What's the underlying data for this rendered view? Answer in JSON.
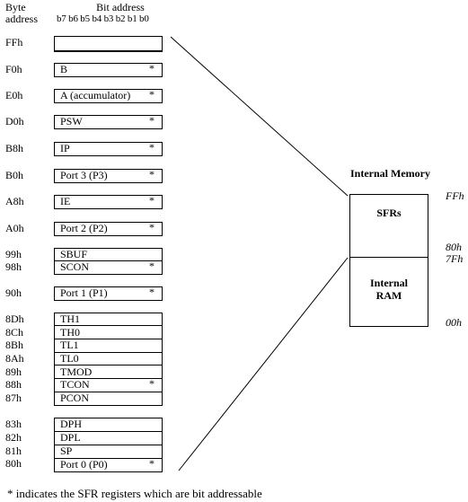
{
  "header": {
    "byte_label": "Byte",
    "address_label": "address",
    "bit_label": "Bit address",
    "bits": "b7 b6 b5 b4 b3 b2 b1 b0"
  },
  "registers": [
    {
      "addr": "FFh",
      "name": "",
      "star": ""
    },
    {
      "addr": "F0h",
      "name": "B",
      "star": "*"
    },
    {
      "addr": "E0h",
      "name": "A  (accumulator)",
      "star": "*"
    },
    {
      "addr": "D0h",
      "name": "PSW",
      "star": "*"
    },
    {
      "addr": "B8h",
      "name": "IP",
      "star": "*"
    },
    {
      "addr": "B0h",
      "name": "Port 3 (P3)",
      "star": "*"
    },
    {
      "addr": "A8h",
      "name": "IE",
      "star": "*"
    },
    {
      "addr": "A0h",
      "name": "Port 2 (P2)",
      "star": "*"
    },
    {
      "addr": "99h",
      "name": "SBUF",
      "star": ""
    },
    {
      "addr": "98h",
      "name": "SCON",
      "star": "*"
    },
    {
      "addr": "90h",
      "name": "Port 1 (P1)",
      "star": "*"
    },
    {
      "addr": "8Dh",
      "name": "TH1",
      "star": ""
    },
    {
      "addr": "8Ch",
      "name": "TH0",
      "star": ""
    },
    {
      "addr": "8Bh",
      "name": "TL1",
      "star": ""
    },
    {
      "addr": "8Ah",
      "name": "TL0",
      "star": ""
    },
    {
      "addr": "89h",
      "name": "TMOD",
      "star": ""
    },
    {
      "addr": "88h",
      "name": "TCON",
      "star": "*"
    },
    {
      "addr": "87h",
      "name": "PCON",
      "star": ""
    },
    {
      "addr": "83h",
      "name": "DPH",
      "star": ""
    },
    {
      "addr": "82h",
      "name": "DPL",
      "star": ""
    },
    {
      "addr": "81h",
      "name": "SP",
      "star": ""
    },
    {
      "addr": "80h",
      "name": "Port 0 (P0)",
      "star": "*"
    }
  ],
  "memory": {
    "title": "Internal Memory",
    "sfr_label": "SFRs",
    "ram_label_1": "Internal",
    "ram_label_2": "RAM",
    "addr_ff": "FFh",
    "addr_80": "80h",
    "addr_7f": "7Fh",
    "addr_00": "00h"
  },
  "footnote": "* indicates the SFR registers which are bit addressable"
}
